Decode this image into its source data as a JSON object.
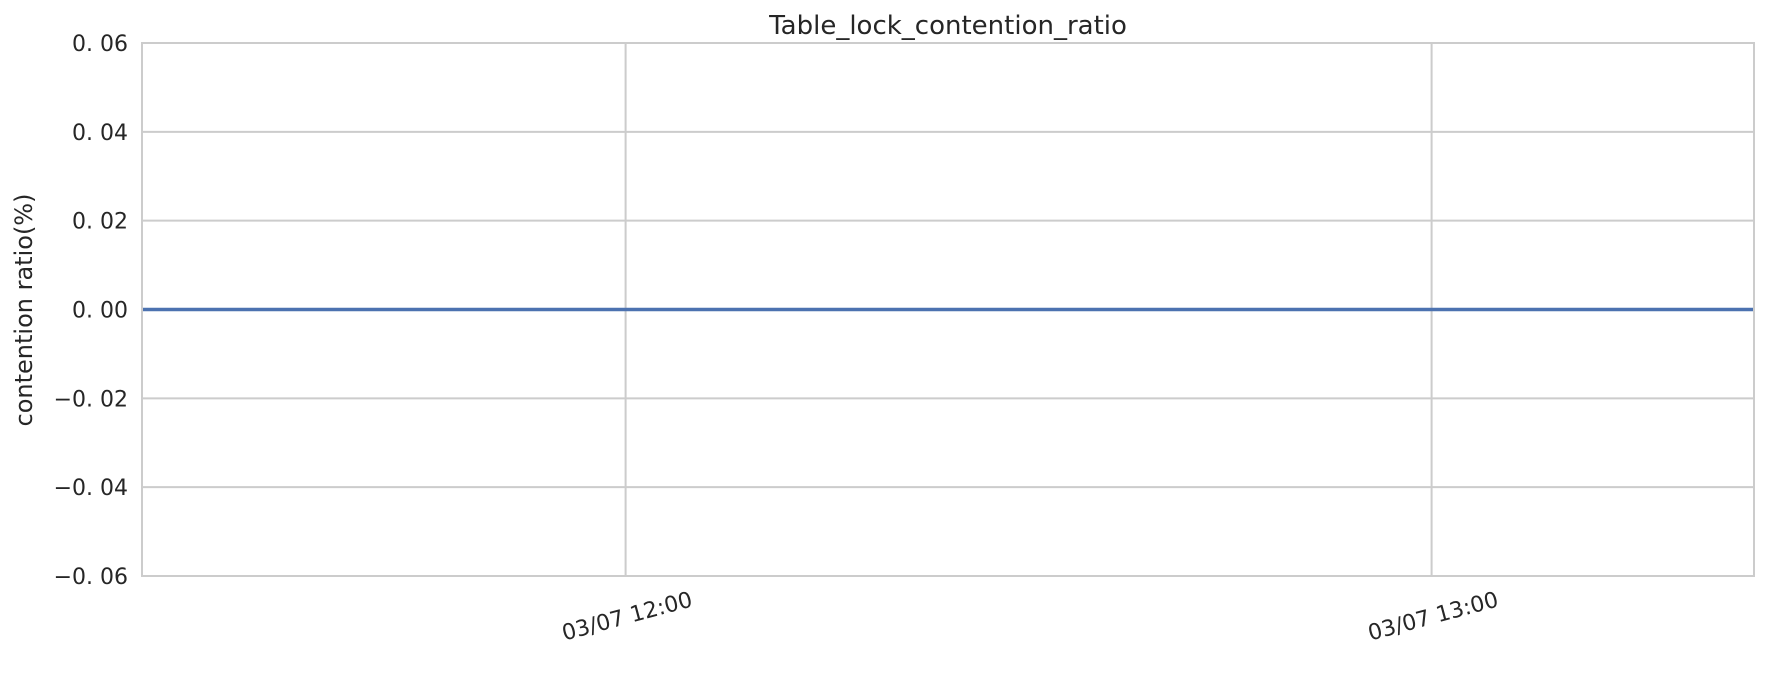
{
  "chart_data": {
    "type": "line",
    "title": "Table_lock_contention_ratio",
    "xlabel": "",
    "ylabel": "contention ratio(%)",
    "ylim": [
      -0.06,
      0.06
    ],
    "yticks": [
      -0.06,
      -0.04,
      -0.02,
      0.0,
      0.02,
      0.04,
      0.06
    ],
    "ytick_labels": [
      "−0. 06",
      "−0. 04",
      "−0. 02",
      "0. 00",
      "0. 02",
      "0. 04",
      "0. 06"
    ],
    "xlim": [
      "03/07 11:24",
      "03/07 13:24"
    ],
    "xticks": [
      "03/07 12:00",
      "03/07 13:00"
    ],
    "xtick_labels": [
      "03/07 12:00",
      "03/07 13:00"
    ],
    "grid": true,
    "series": [
      {
        "color": "#4c72b0",
        "x": [
          "03/07 11:24",
          "03/07 13:24"
        ],
        "y": [
          0.0,
          0.0
        ]
      }
    ]
  }
}
